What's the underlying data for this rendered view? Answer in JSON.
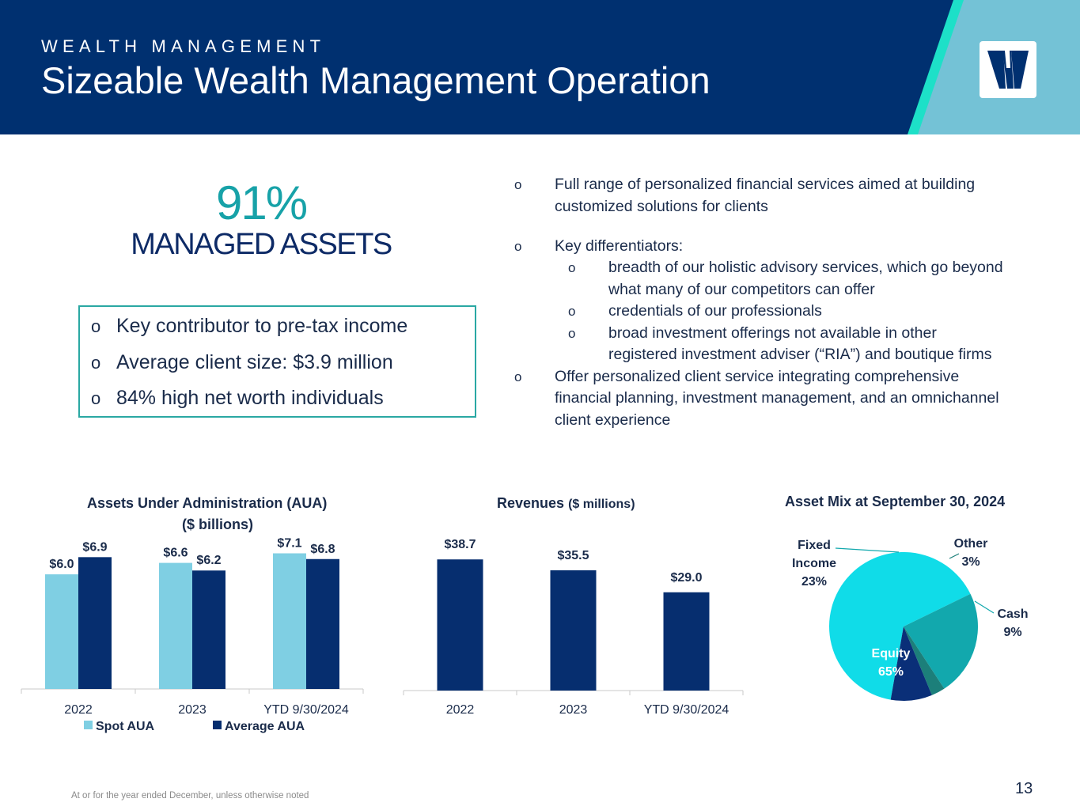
{
  "header": {
    "eyebrow": "WEALTH MANAGEMENT",
    "title": "Sizeable Wealth Management Operation",
    "colors": {
      "navy": "#003070",
      "teal_stripe": "#1de0c8",
      "light_blue": "#74c2d6"
    },
    "logo_icon": "w-logo-icon"
  },
  "kpi": {
    "value": "91%",
    "label": "MANAGED ASSETS"
  },
  "highlights": [
    {
      "marker": "o",
      "text": "Key contributor to pre-tax income"
    },
    {
      "marker": "o",
      "text": "Average client size: $3.9 million"
    },
    {
      "marker": "o",
      "text": "84% high net worth individuals"
    }
  ],
  "bullets": [
    {
      "marker": "o",
      "level": 0,
      "lines": [
        "Full range of personalized financial services aimed at building",
        "customized solutions for clients"
      ]
    },
    {
      "marker": "o",
      "level": 0,
      "lines": [
        "Key differentiators:"
      ]
    },
    {
      "marker": "o",
      "level": 1,
      "lines": [
        "breadth of our holistic advisory services, which go beyond",
        "what many of our competitors can offer"
      ]
    },
    {
      "marker": "o",
      "level": 1,
      "lines": [
        "credentials of our professionals"
      ]
    },
    {
      "marker": "o",
      "level": 1,
      "lines": [
        "broad investment offerings not available in other",
        "registered investment adviser (“RIA”) and boutique firms"
      ]
    },
    {
      "marker": "o",
      "level": 0,
      "lines": [
        "Offer personalized client service integrating comprehensive",
        "financial planning, investment management, and an omnichannel",
        "client experience"
      ]
    }
  ],
  "chart_data": [
    {
      "type": "bar",
      "title": "Assets Under Administration (AUA)",
      "subtitle": "($ billions)",
      "categories": [
        "2022",
        "2023",
        "YTD 9/30/2024"
      ],
      "series": [
        {
          "name": "Spot AUA",
          "values": [
            6.0,
            6.6,
            7.1
          ],
          "labels": [
            "$6.0",
            "$6.6",
            "$7.1"
          ],
          "color": "#7fcfe3"
        },
        {
          "name": "Average AUA",
          "values": [
            6.9,
            6.2,
            6.8
          ],
          "labels": [
            "$6.9",
            "$6.2",
            "$6.8"
          ],
          "color": "#062e6f"
        }
      ],
      "ylim": [
        0,
        8
      ],
      "legend": "bottom-left",
      "grid": false
    },
    {
      "type": "bar",
      "title": "Revenues",
      "subtitle": "($ millions)",
      "categories": [
        "2022",
        "2023",
        "YTD 9/30/2024"
      ],
      "values": [
        38.7,
        35.5,
        29.0
      ],
      "labels": [
        "$38.7",
        "$35.5",
        "$29.0"
      ],
      "color": "#062e6f",
      "ylim": [
        0,
        44
      ],
      "grid": false
    },
    {
      "type": "pie",
      "title": "Asset Mix at September 30, 2024",
      "slices": [
        {
          "name": "Equity",
          "value": 65,
          "label": "65%",
          "color": "#10dce8"
        },
        {
          "name": "Fixed Income",
          "value": 23,
          "label": "23%",
          "color": "#12a8ad"
        },
        {
          "name": "Other",
          "value": 3,
          "label": "3%",
          "color": "#1c7f7a"
        },
        {
          "name": "Cash",
          "value": 9,
          "label": "9%",
          "color": "#0a2f78"
        }
      ]
    }
  ],
  "footnote": "At or for the year ended December, unless otherwise noted",
  "page_number": "13"
}
